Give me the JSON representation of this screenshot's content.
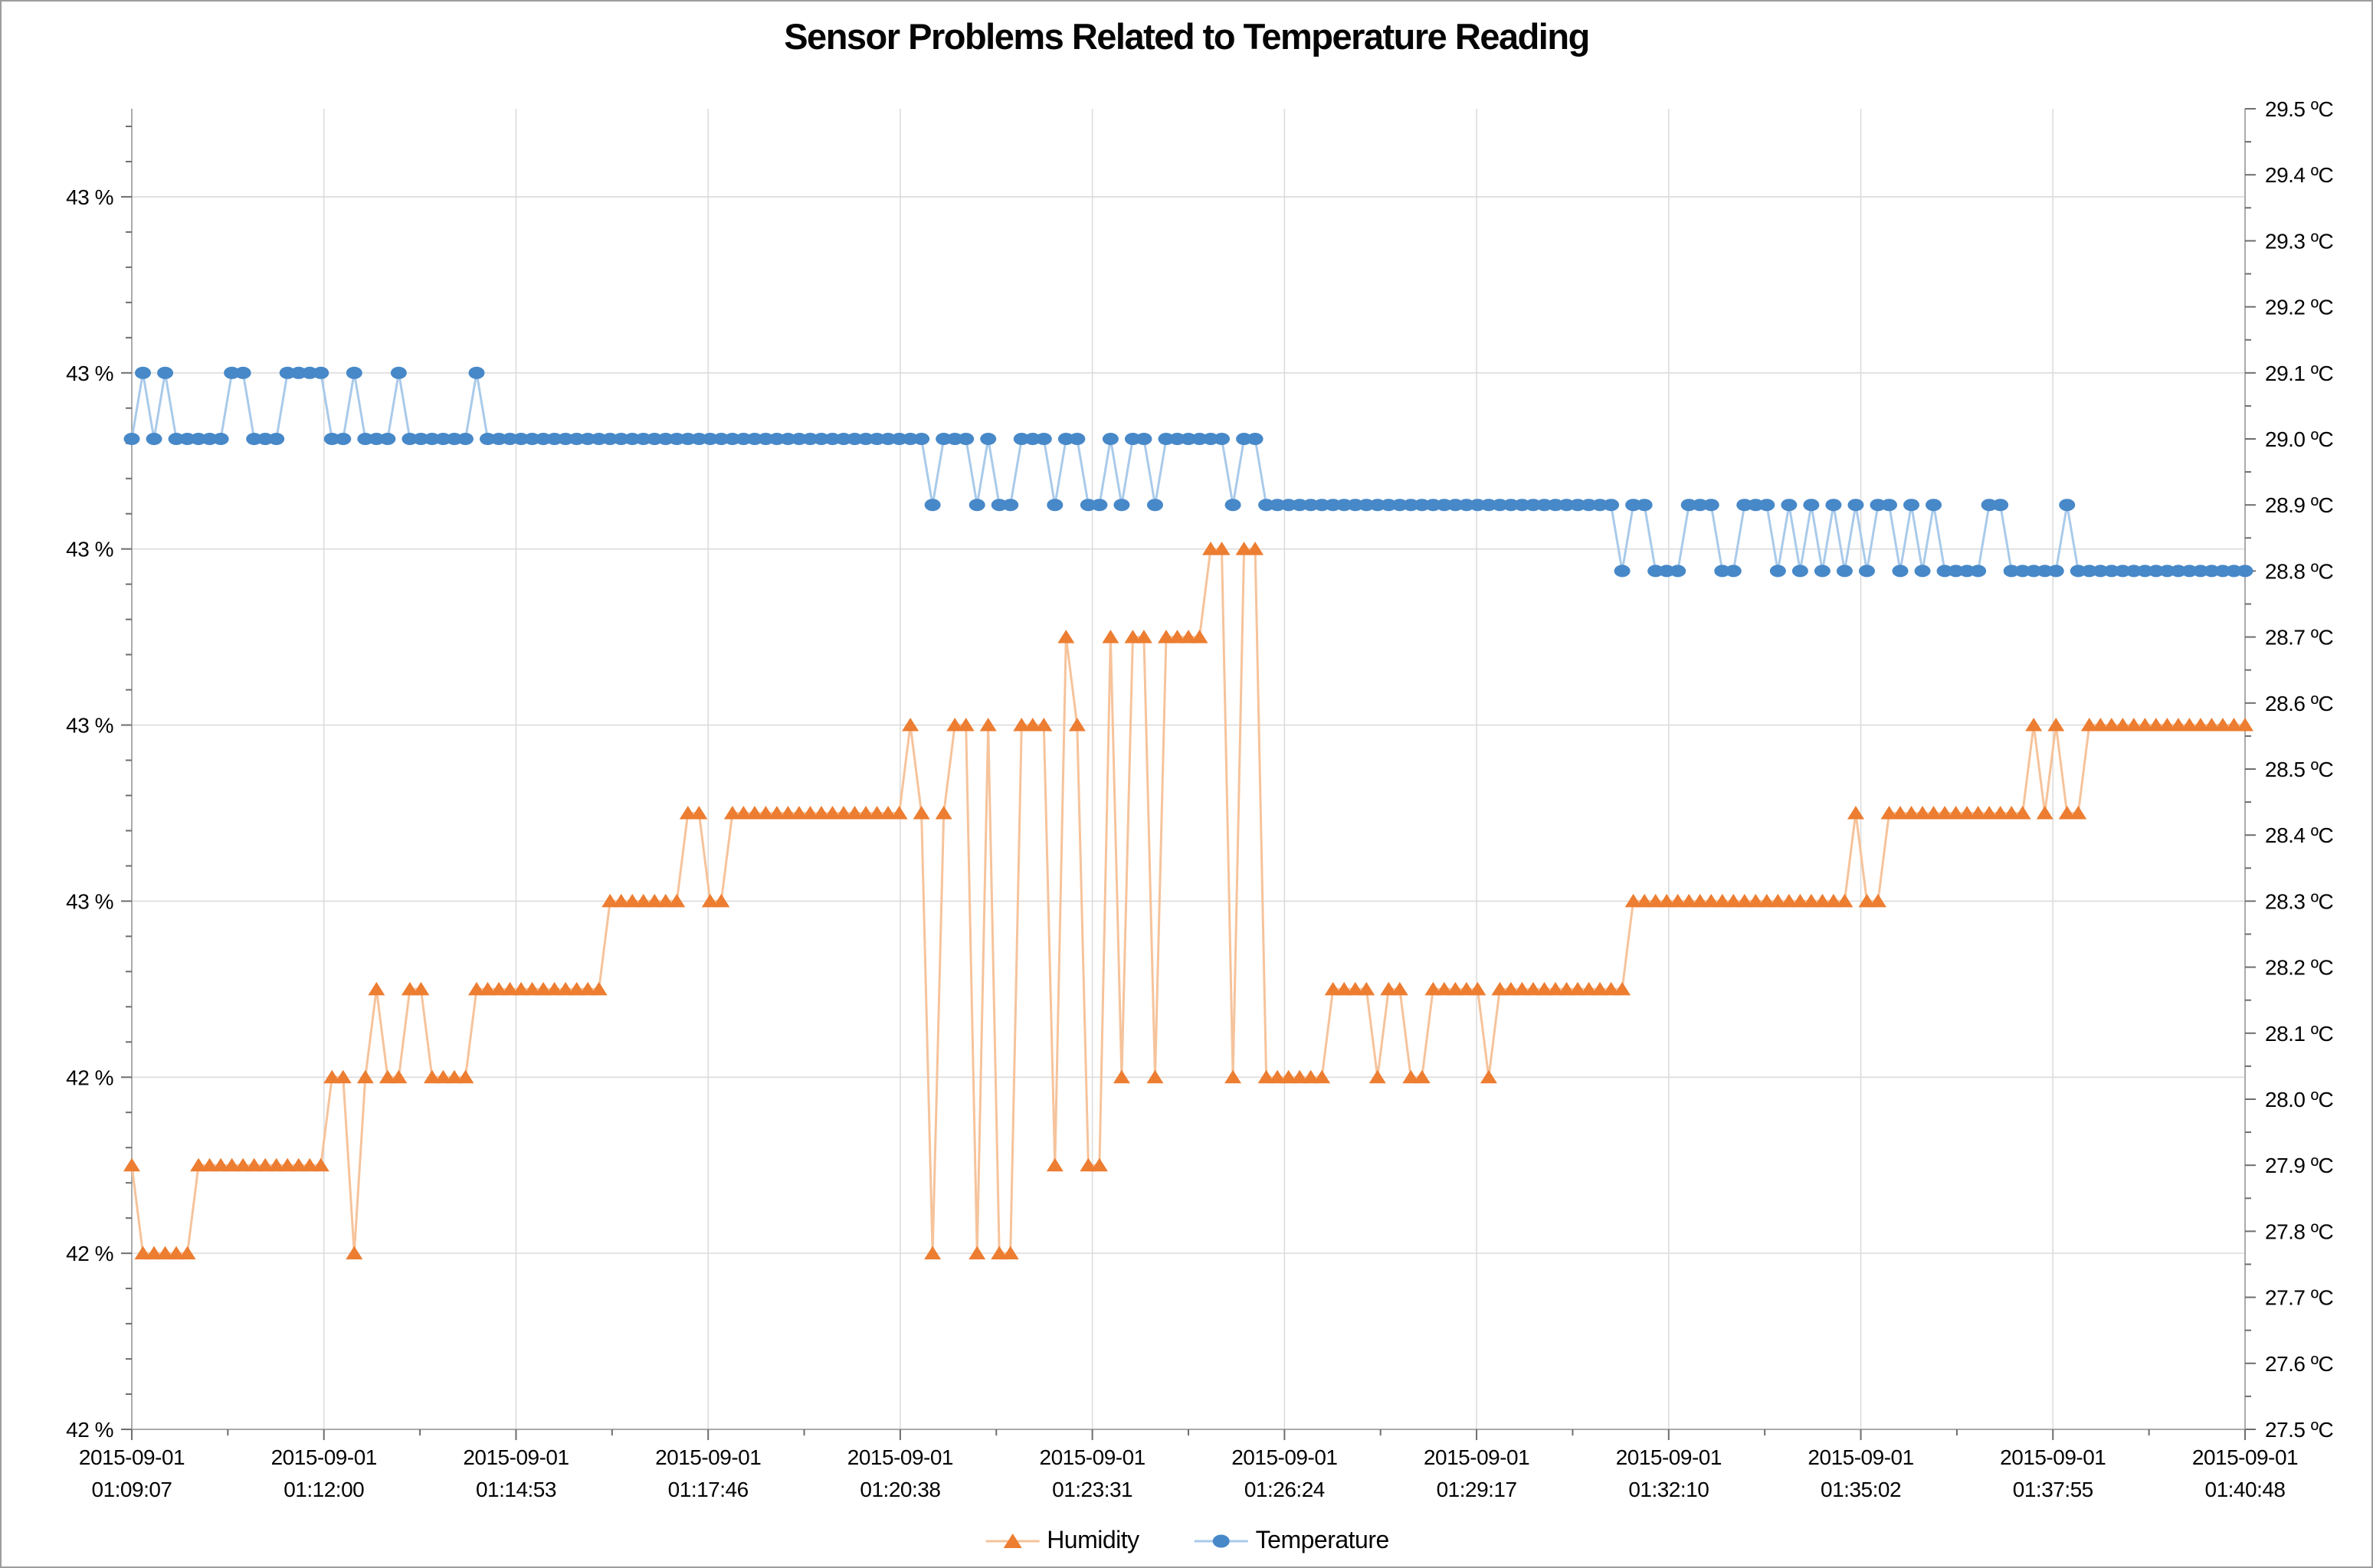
{
  "title": "Sensor Problems Related to Temperature Reading",
  "legend": {
    "items": [
      {
        "label": "Humidity",
        "marker": "triangle",
        "color": "#EC7D31",
        "line_color": "#F6C39B"
      },
      {
        "label": "Temperature",
        "marker": "circle",
        "color": "#4788C8",
        "line_color": "#A9CAEA"
      }
    ]
  },
  "chart_data": {
    "type": "line",
    "title": "Sensor Problems Related to Temperature Reading",
    "x": {
      "start": "2015-09-01 01:09:07",
      "end": "2015-09-01 01:40:48",
      "step_seconds": 10,
      "n_points": 191
    },
    "x_tick_labels": [
      {
        "date": "2015-09-01",
        "time": "01:09:07"
      },
      {
        "date": "2015-09-01",
        "time": "01:12:00"
      },
      {
        "date": "2015-09-01",
        "time": "01:14:53"
      },
      {
        "date": "2015-09-01",
        "time": "01:17:46"
      },
      {
        "date": "2015-09-01",
        "time": "01:20:38"
      },
      {
        "date": "2015-09-01",
        "time": "01:23:31"
      },
      {
        "date": "2015-09-01",
        "time": "01:26:24"
      },
      {
        "date": "2015-09-01",
        "time": "01:29:17"
      },
      {
        "date": "2015-09-01",
        "time": "01:32:10"
      },
      {
        "date": "2015-09-01",
        "time": "01:35:02"
      },
      {
        "date": "2015-09-01",
        "time": "01:37:55"
      },
      {
        "date": "2015-09-01",
        "time": "01:40:48"
      }
    ],
    "left_axis": {
      "min": 42.0,
      "max": 43.5,
      "major": 0.2,
      "minors_per_major": 5,
      "tick_labels_top_to_bottom": [
        "43 %",
        "43 %",
        "43 %",
        "43 %",
        "43 %",
        "42 %",
        "42 %",
        "42 %"
      ]
    },
    "right_axis": {
      "min": 27.5,
      "max": 29.5,
      "major": 0.1,
      "minors_per_major": 2,
      "tick_labels_top_to_bottom": [
        "29.5 ºC",
        "29.4 ºC",
        "29.3 ºC",
        "29.2 ºC",
        "29.1 ºC",
        "29.0 ºC",
        "28.9 ºC",
        "28.8 ºC",
        "28.7 ºC",
        "28.6 ºC",
        "28.5 ºC",
        "28.4 ºC",
        "28.3 ºC",
        "28.2 ºC",
        "28.1 ºC",
        "28.0 ºC",
        "27.9 ºC",
        "27.8 ºC",
        "27.7 ºC",
        "27.6 ºC",
        "27.5 ºC"
      ]
    },
    "grid": true,
    "legend_position": "bottom",
    "series": [
      {
        "name": "Humidity",
        "axis": "left",
        "marker": "triangle",
        "marker_color": "#EC7D31",
        "line_color": "#F6C39B",
        "values": [
          42.3,
          42.2,
          42.2,
          42.2,
          42.2,
          42.2,
          42.3,
          42.3,
          42.3,
          42.3,
          42.3,
          42.3,
          42.3,
          42.3,
          42.3,
          42.3,
          42.3,
          42.3,
          42.4,
          42.4,
          42.2,
          42.4,
          42.5,
          42.4,
          42.4,
          42.5,
          42.5,
          42.4,
          42.4,
          42.4,
          42.4,
          42.5,
          42.5,
          42.5,
          42.5,
          42.5,
          42.5,
          42.5,
          42.5,
          42.5,
          42.5,
          42.5,
          42.5,
          42.6,
          42.6,
          42.6,
          42.6,
          42.6,
          42.6,
          42.6,
          42.7,
          42.7,
          42.6,
          42.6,
          42.7,
          42.7,
          42.7,
          42.7,
          42.7,
          42.7,
          42.7,
          42.7,
          42.7,
          42.7,
          42.7,
          42.7,
          42.7,
          42.7,
          42.7,
          42.7,
          42.8,
          42.7,
          42.2,
          42.7,
          42.8,
          42.8,
          42.2,
          42.8,
          42.2,
          42.2,
          42.8,
          42.8,
          42.8,
          42.3,
          42.9,
          42.8,
          42.3,
          42.3,
          42.9,
          42.4,
          42.9,
          42.9,
          42.4,
          42.9,
          42.9,
          42.9,
          42.9,
          43.0,
          43.0,
          42.4,
          43.0,
          43.0,
          42.4,
          42.4,
          42.4,
          42.4,
          42.4,
          42.4,
          42.5,
          42.5,
          42.5,
          42.5,
          42.4,
          42.5,
          42.5,
          42.4,
          42.4,
          42.5,
          42.5,
          42.5,
          42.5,
          42.5,
          42.4,
          42.5,
          42.5,
          42.5,
          42.5,
          42.5,
          42.5,
          42.5,
          42.5,
          42.5,
          42.5,
          42.5,
          42.5,
          42.6,
          42.6,
          42.6,
          42.6,
          42.6,
          42.6,
          42.6,
          42.6,
          42.6,
          42.6,
          42.6,
          42.6,
          42.6,
          42.6,
          42.6,
          42.6,
          42.6,
          42.6,
          42.6,
          42.6,
          42.7,
          42.6,
          42.6,
          42.7,
          42.7,
          42.7,
          42.7,
          42.7,
          42.7,
          42.7,
          42.7,
          42.7,
          42.7,
          42.7,
          42.7,
          42.7,
          42.8,
          42.7,
          42.8,
          42.7,
          42.7,
          42.8,
          42.8,
          42.8,
          42.8,
          42.8,
          42.8,
          42.8,
          42.8,
          42.8,
          42.8,
          42.8,
          42.8,
          42.8,
          42.8,
          42.8
        ]
      },
      {
        "name": "Temperature",
        "axis": "right",
        "marker": "circle",
        "marker_color": "#4788C8",
        "line_color": "#A9CAEA",
        "values": [
          29.0,
          29.1,
          29.0,
          29.1,
          29.0,
          29.0,
          29.0,
          29.0,
          29.0,
          29.1,
          29.1,
          29.0,
          29.0,
          29.0,
          29.1,
          29.1,
          29.1,
          29.1,
          29.0,
          29.0,
          29.1,
          29.0,
          29.0,
          29.0,
          29.1,
          29.0,
          29.0,
          29.0,
          29.0,
          29.0,
          29.0,
          29.1,
          29.0,
          29.0,
          29.0,
          29.0,
          29.0,
          29.0,
          29.0,
          29.0,
          29.0,
          29.0,
          29.0,
          29.0,
          29.0,
          29.0,
          29.0,
          29.0,
          29.0,
          29.0,
          29.0,
          29.0,
          29.0,
          29.0,
          29.0,
          29.0,
          29.0,
          29.0,
          29.0,
          29.0,
          29.0,
          29.0,
          29.0,
          29.0,
          29.0,
          29.0,
          29.0,
          29.0,
          29.0,
          29.0,
          29.0,
          29.0,
          28.9,
          29.0,
          29.0,
          29.0,
          28.9,
          29.0,
          28.9,
          28.9,
          29.0,
          29.0,
          29.0,
          28.9,
          29.0,
          29.0,
          28.9,
          28.9,
          29.0,
          28.9,
          29.0,
          29.0,
          28.9,
          29.0,
          29.0,
          29.0,
          29.0,
          29.0,
          29.0,
          28.9,
          29.0,
          29.0,
          28.9,
          28.9,
          28.9,
          28.9,
          28.9,
          28.9,
          28.9,
          28.9,
          28.9,
          28.9,
          28.9,
          28.9,
          28.9,
          28.9,
          28.9,
          28.9,
          28.9,
          28.9,
          28.9,
          28.9,
          28.9,
          28.9,
          28.9,
          28.9,
          28.9,
          28.9,
          28.9,
          28.9,
          28.9,
          28.9,
          28.9,
          28.9,
          28.8,
          28.9,
          28.9,
          28.8,
          28.8,
          28.8,
          28.9,
          28.9,
          28.9,
          28.8,
          28.8,
          28.9,
          28.9,
          28.9,
          28.8,
          28.9,
          28.8,
          28.9,
          28.8,
          28.9,
          28.8,
          28.9,
          28.8,
          28.9,
          28.9,
          28.8,
          28.9,
          28.8,
          28.9,
          28.8,
          28.8,
          28.8,
          28.8,
          28.9,
          28.9,
          28.8,
          28.8,
          28.8,
          28.8,
          28.8,
          28.9,
          28.8,
          28.8,
          28.8,
          28.8,
          28.8,
          28.8,
          28.8,
          28.8,
          28.8,
          28.8,
          28.8,
          28.8,
          28.8,
          28.8,
          28.8,
          28.8
        ]
      }
    ]
  }
}
